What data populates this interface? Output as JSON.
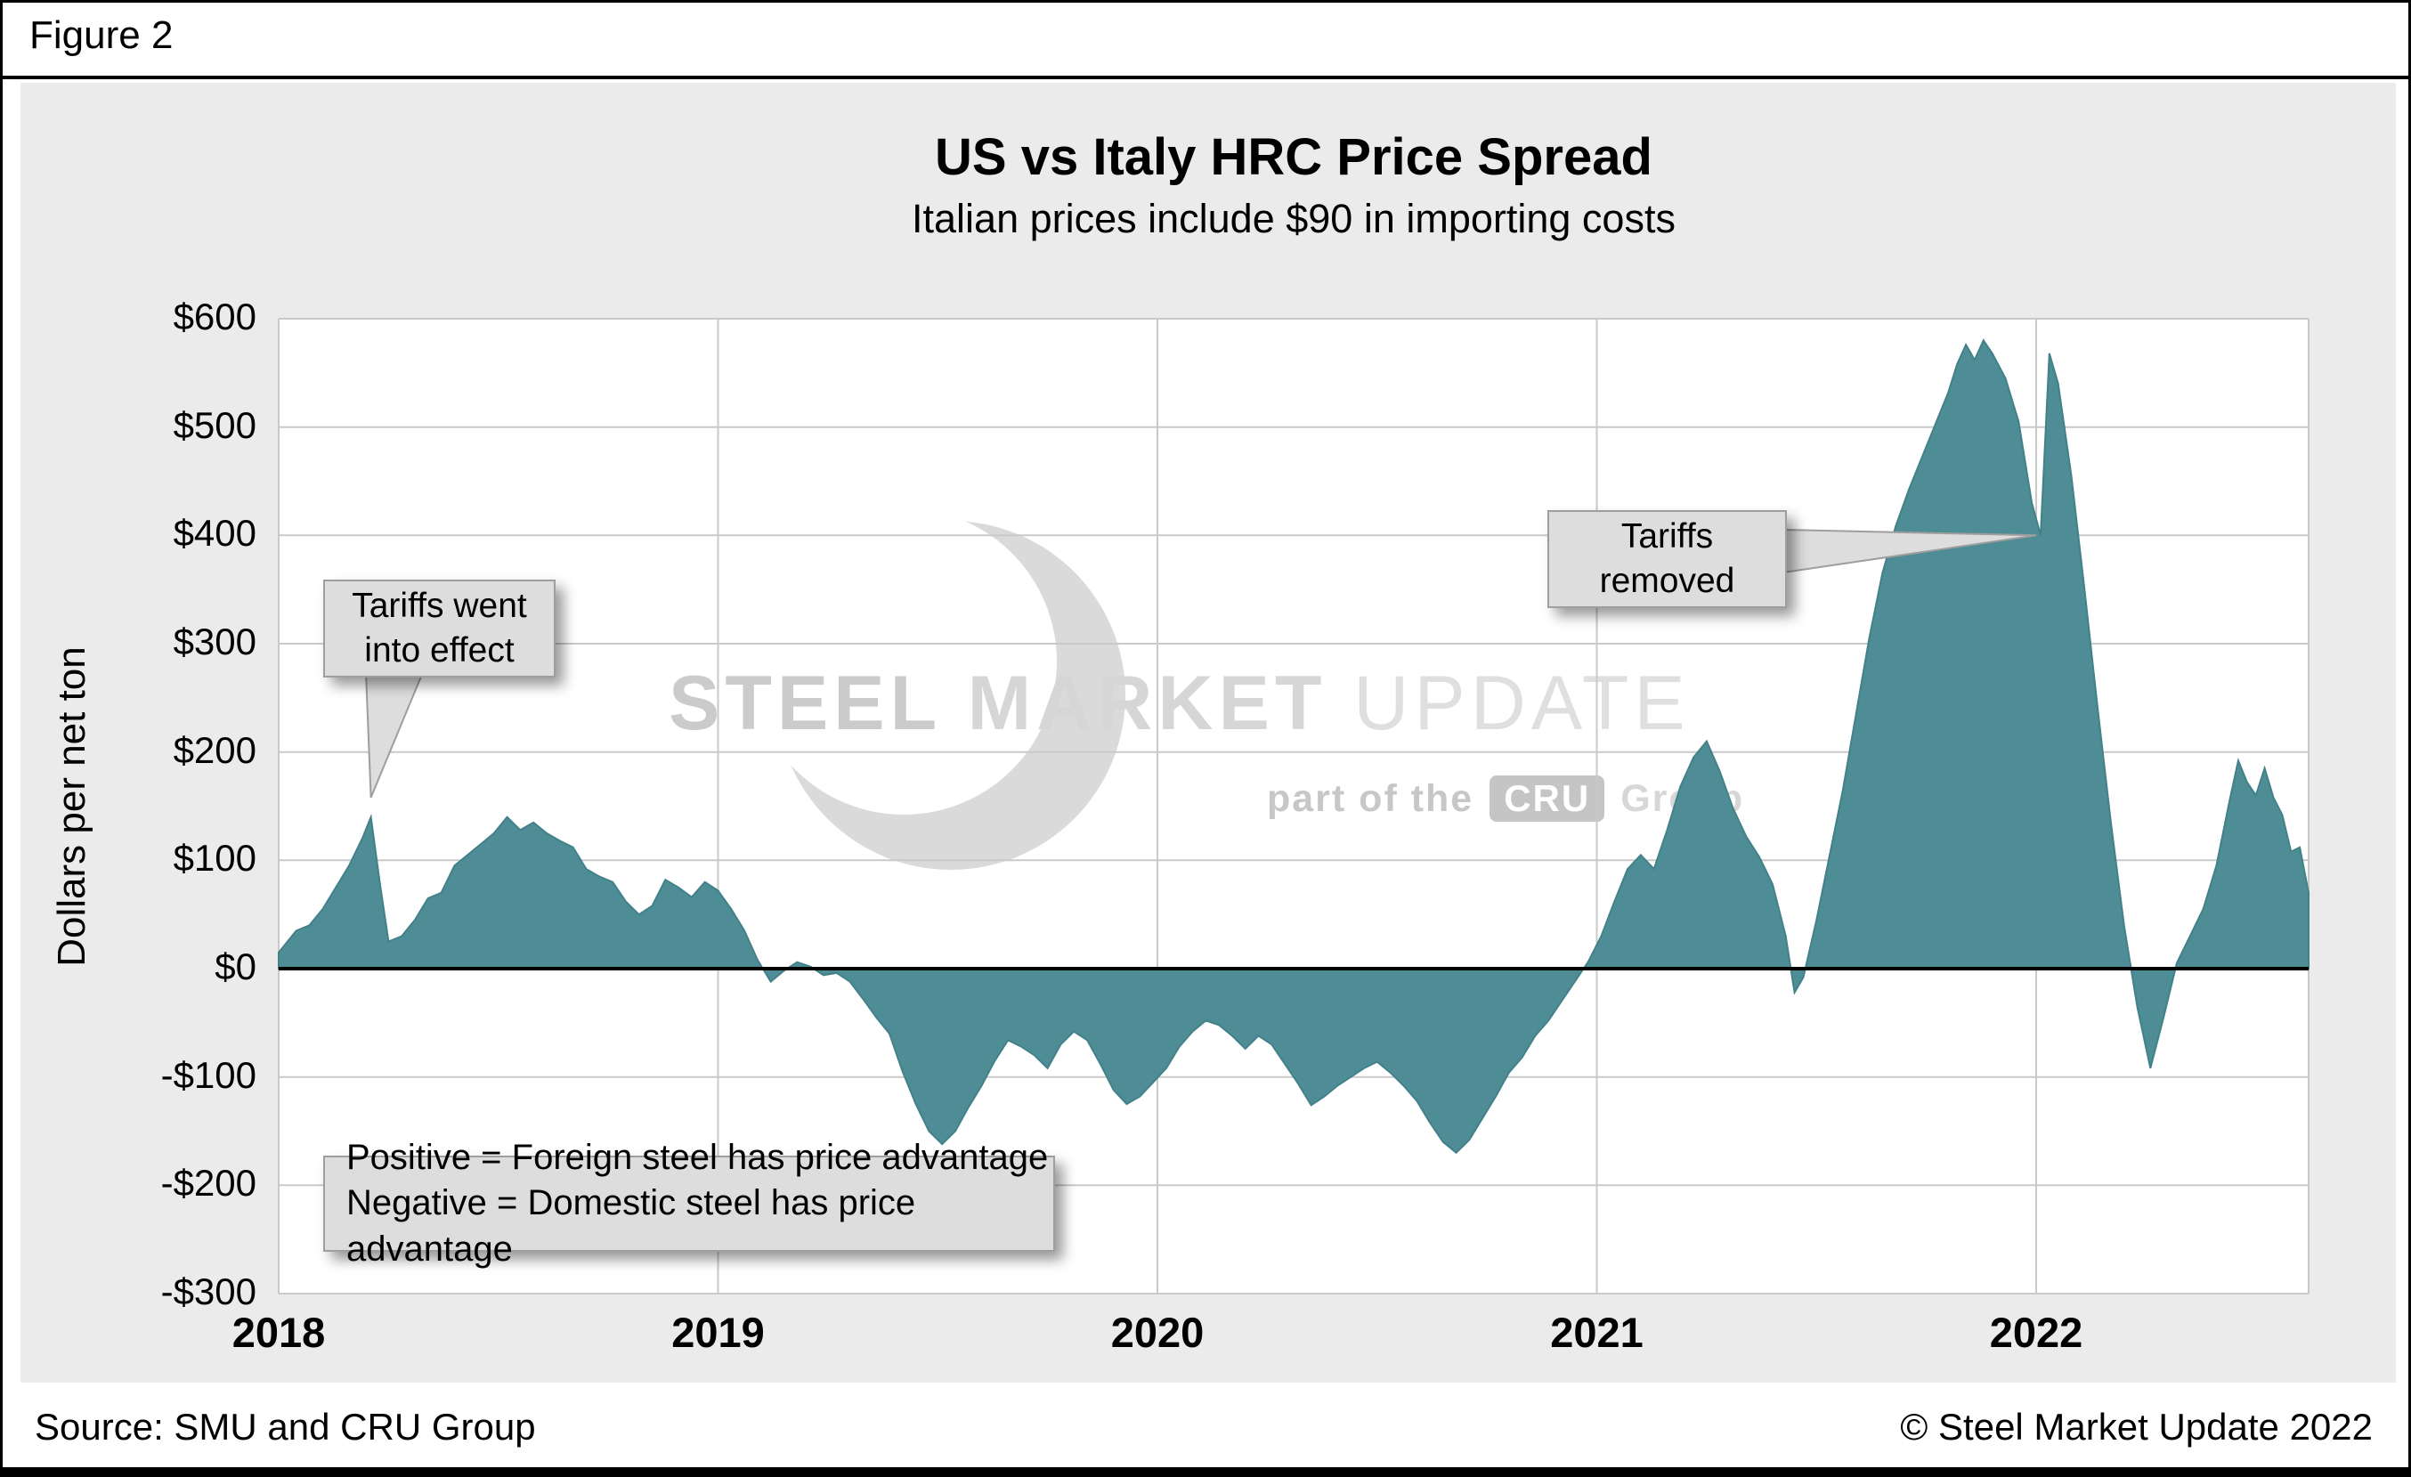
{
  "figure_label": "Figure 2",
  "title": "US vs Italy HRC Price Spread",
  "subtitle": "Italian prices include $90 in importing costs",
  "footer": {
    "source": "Source: SMU and CRU Group",
    "copyright": "© Steel Market Update 2022"
  },
  "watermark": {
    "word1": "STEEL",
    "word2": "MARKET",
    "word3": "UPDATE",
    "tagline_prefix": "part of the",
    "cru": "CRU",
    "group": "Group"
  },
  "annotations": {
    "tariffs_effect": {
      "line1": "Tariffs went",
      "line2": "into effect",
      "target_x": 2018.21,
      "target_y": 158
    },
    "tariffs_removed": {
      "line1": "Tariffs",
      "line2": "removed",
      "target_x": 2022.0,
      "target_y": 400
    },
    "note": {
      "line1": "Positive = Foreign steel has price advantage",
      "line2": "Negative = Domestic steel has price advantage"
    }
  },
  "colors": {
    "area": "#4E8D95",
    "area_edge": "#43818A",
    "grid": "#C9C9C9",
    "zero_line": "#000000",
    "panel_bg": "#EBEBEB",
    "plot_bg": "#FFFFFF",
    "callout_bg": "#DDDDDD",
    "callout_border": "#9E9E9E"
  },
  "chart_data": {
    "type": "area",
    "title": "US vs Italy HRC Price Spread",
    "subtitle": "Italian prices include $90 in importing costs",
    "xlabel": "",
    "ylabel": "Dollars per net ton",
    "xlim": [
      2018.0,
      2022.62
    ],
    "ylim": [
      -300,
      600
    ],
    "grid": true,
    "x_ticks": {
      "values": [
        2018,
        2019,
        2020,
        2021,
        2022
      ],
      "labels": [
        "2018",
        "2019",
        "2020",
        "2021",
        "2022"
      ]
    },
    "y_ticks": {
      "values": [
        600,
        500,
        400,
        300,
        200,
        100,
        0,
        -100,
        -200,
        -300
      ],
      "labels": [
        "$600",
        "$500",
        "$400",
        "$300",
        "$200",
        "$100",
        "$0",
        "-$100",
        "-$200",
        "-$300"
      ]
    },
    "points": [
      [
        2018.0,
        15
      ],
      [
        2018.04,
        35
      ],
      [
        2018.07,
        40
      ],
      [
        2018.1,
        55
      ],
      [
        2018.13,
        75
      ],
      [
        2018.16,
        95
      ],
      [
        2018.19,
        120
      ],
      [
        2018.21,
        140
      ],
      [
        2018.23,
        80
      ],
      [
        2018.25,
        25
      ],
      [
        2018.28,
        30
      ],
      [
        2018.31,
        45
      ],
      [
        2018.34,
        65
      ],
      [
        2018.37,
        70
      ],
      [
        2018.4,
        95
      ],
      [
        2018.43,
        105
      ],
      [
        2018.46,
        115
      ],
      [
        2018.49,
        125
      ],
      [
        2018.52,
        140
      ],
      [
        2018.55,
        128
      ],
      [
        2018.58,
        135
      ],
      [
        2018.61,
        125
      ],
      [
        2018.64,
        118
      ],
      [
        2018.67,
        112
      ],
      [
        2018.7,
        92
      ],
      [
        2018.73,
        85
      ],
      [
        2018.76,
        80
      ],
      [
        2018.79,
        62
      ],
      [
        2018.82,
        50
      ],
      [
        2018.85,
        58
      ],
      [
        2018.88,
        82
      ],
      [
        2018.91,
        75
      ],
      [
        2018.94,
        66
      ],
      [
        2018.97,
        80
      ],
      [
        2019.0,
        72
      ],
      [
        2019.03,
        55
      ],
      [
        2019.06,
        35
      ],
      [
        2019.09,
        8
      ],
      [
        2019.12,
        -12
      ],
      [
        2019.15,
        -2
      ],
      [
        2019.18,
        6
      ],
      [
        2019.21,
        2
      ],
      [
        2019.24,
        -6
      ],
      [
        2019.27,
        -4
      ],
      [
        2019.3,
        -12
      ],
      [
        2019.33,
        -28
      ],
      [
        2019.36,
        -45
      ],
      [
        2019.39,
        -60
      ],
      [
        2019.42,
        -95
      ],
      [
        2019.45,
        -125
      ],
      [
        2019.48,
        -150
      ],
      [
        2019.51,
        -162
      ],
      [
        2019.54,
        -150
      ],
      [
        2019.57,
        -128
      ],
      [
        2019.6,
        -108
      ],
      [
        2019.63,
        -85
      ],
      [
        2019.66,
        -66
      ],
      [
        2019.69,
        -72
      ],
      [
        2019.72,
        -80
      ],
      [
        2019.75,
        -92
      ],
      [
        2019.78,
        -70
      ],
      [
        2019.81,
        -58
      ],
      [
        2019.84,
        -66
      ],
      [
        2019.87,
        -88
      ],
      [
        2019.9,
        -112
      ],
      [
        2019.93,
        -125
      ],
      [
        2019.96,
        -118
      ],
      [
        2019.99,
        -105
      ],
      [
        2020.02,
        -92
      ],
      [
        2020.05,
        -72
      ],
      [
        2020.08,
        -58
      ],
      [
        2020.11,
        -48
      ],
      [
        2020.14,
        -52
      ],
      [
        2020.17,
        -62
      ],
      [
        2020.2,
        -74
      ],
      [
        2020.23,
        -62
      ],
      [
        2020.26,
        -70
      ],
      [
        2020.29,
        -88
      ],
      [
        2020.32,
        -106
      ],
      [
        2020.35,
        -126
      ],
      [
        2020.38,
        -118
      ],
      [
        2020.41,
        -108
      ],
      [
        2020.44,
        -100
      ],
      [
        2020.47,
        -92
      ],
      [
        2020.5,
        -86
      ],
      [
        2020.53,
        -96
      ],
      [
        2020.56,
        -108
      ],
      [
        2020.59,
        -122
      ],
      [
        2020.62,
        -142
      ],
      [
        2020.65,
        -160
      ],
      [
        2020.68,
        -170
      ],
      [
        2020.71,
        -158
      ],
      [
        2020.74,
        -138
      ],
      [
        2020.77,
        -118
      ],
      [
        2020.8,
        -96
      ],
      [
        2020.83,
        -82
      ],
      [
        2020.86,
        -62
      ],
      [
        2020.89,
        -48
      ],
      [
        2020.92,
        -30
      ],
      [
        2020.95,
        -12
      ],
      [
        2020.98,
        6
      ],
      [
        2021.01,
        30
      ],
      [
        2021.04,
        62
      ],
      [
        2021.07,
        92
      ],
      [
        2021.1,
        105
      ],
      [
        2021.13,
        92
      ],
      [
        2021.16,
        128
      ],
      [
        2021.19,
        168
      ],
      [
        2021.22,
        195
      ],
      [
        2021.25,
        210
      ],
      [
        2021.28,
        182
      ],
      [
        2021.31,
        148
      ],
      [
        2021.34,
        122
      ],
      [
        2021.37,
        103
      ],
      [
        2021.4,
        78
      ],
      [
        2021.43,
        30
      ],
      [
        2021.45,
        -22
      ],
      [
        2021.47,
        -8
      ],
      [
        2021.5,
        45
      ],
      [
        2021.53,
        105
      ],
      [
        2021.56,
        165
      ],
      [
        2021.59,
        235
      ],
      [
        2021.62,
        305
      ],
      [
        2021.65,
        365
      ],
      [
        2021.68,
        408
      ],
      [
        2021.71,
        442
      ],
      [
        2021.74,
        472
      ],
      [
        2021.77,
        502
      ],
      [
        2021.8,
        532
      ],
      [
        2021.82,
        558
      ],
      [
        2021.84,
        576
      ],
      [
        2021.86,
        562
      ],
      [
        2021.88,
        580
      ],
      [
        2021.9,
        568
      ],
      [
        2021.93,
        545
      ],
      [
        2021.96,
        505
      ],
      [
        2021.99,
        430
      ],
      [
        2022.01,
        400
      ],
      [
        2022.03,
        568
      ],
      [
        2022.05,
        540
      ],
      [
        2022.08,
        455
      ],
      [
        2022.11,
        350
      ],
      [
        2022.14,
        240
      ],
      [
        2022.17,
        135
      ],
      [
        2022.2,
        40
      ],
      [
        2022.23,
        -35
      ],
      [
        2022.26,
        -92
      ],
      [
        2022.29,
        -45
      ],
      [
        2022.32,
        5
      ],
      [
        2022.35,
        30
      ],
      [
        2022.38,
        55
      ],
      [
        2022.41,
        95
      ],
      [
        2022.44,
        155
      ],
      [
        2022.46,
        192
      ],
      [
        2022.48,
        172
      ],
      [
        2022.5,
        160
      ],
      [
        2022.52,
        185
      ],
      [
        2022.54,
        158
      ],
      [
        2022.56,
        142
      ],
      [
        2022.58,
        108
      ],
      [
        2022.6,
        112
      ],
      [
        2022.62,
        70
      ]
    ]
  }
}
